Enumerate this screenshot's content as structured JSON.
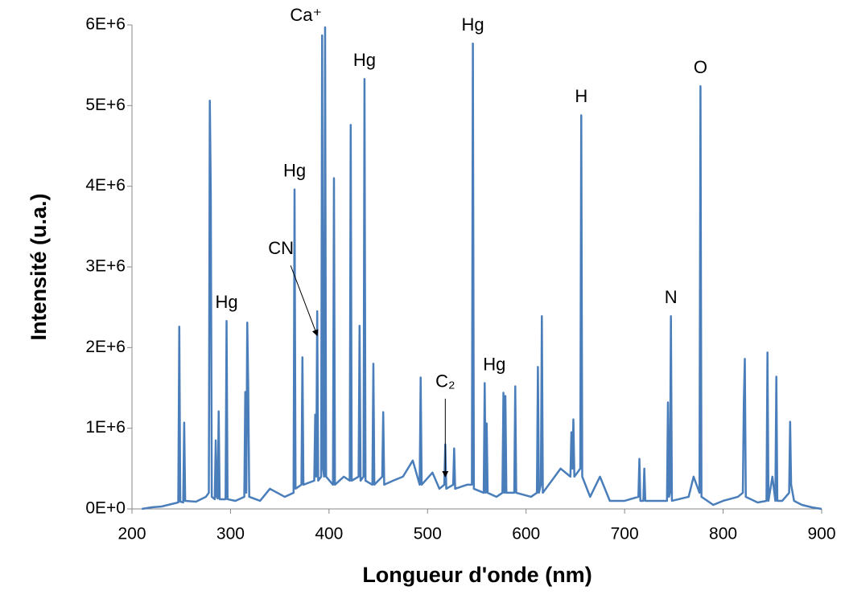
{
  "chart_data": {
    "type": "line",
    "x_label": "Longueur d'onde (nm)",
    "y_label": "Intensité (u.a.)",
    "xlim": [
      200,
      900
    ],
    "xticks": [
      200,
      300,
      400,
      500,
      600,
      700,
      800,
      900
    ],
    "ylim": [
      0,
      6000000
    ],
    "yticks": [
      {
        "value": 0,
        "label": "0E+0"
      },
      {
        "value": 1000000,
        "label": "1E+6"
      },
      {
        "value": 2000000,
        "label": "2E+6"
      },
      {
        "value": 3000000,
        "label": "3E+6"
      },
      {
        "value": 4000000,
        "label": "4E+6"
      },
      {
        "value": 5000000,
        "label": "5E+6"
      },
      {
        "value": 6000000,
        "label": "6E+6"
      }
    ],
    "grid": false,
    "series": [
      {
        "color": "#4a7ebb",
        "x": [
          210,
          220,
          230,
          240,
          247,
          248,
          249,
          252,
          253,
          254,
          265,
          275,
          278,
          279,
          280,
          281,
          284,
          285,
          286,
          287,
          288,
          289,
          295,
          296,
          297,
          305,
          314,
          315,
          316,
          317,
          318,
          319,
          330,
          340,
          355,
          364,
          365,
          366,
          372,
          373,
          374,
          385,
          386,
          387,
          388,
          389,
          392,
          393,
          394,
          395,
          396,
          397,
          404,
          405,
          406,
          415,
          421,
          422,
          423,
          430,
          431,
          432,
          435,
          436,
          437,
          444,
          445,
          446,
          454,
          455,
          456,
          465,
          475,
          485,
          492,
          493,
          494,
          505,
          512,
          517,
          518,
          519,
          526,
          527,
          528,
          540,
          545,
          546,
          547,
          557,
          558,
          559,
          560,
          561,
          570,
          576,
          577,
          578,
          579,
          580,
          588,
          589,
          590,
          605,
          611,
          612,
          613,
          615,
          616,
          617,
          635,
          645,
          646,
          647,
          648,
          649,
          655,
          656,
          657,
          665,
          675,
          685,
          700,
          714,
          715,
          716,
          719,
          720,
          721,
          735,
          743,
          744,
          745,
          746,
          747,
          748,
          765,
          770,
          776,
          777,
          778,
          790,
          800,
          815,
          820,
          821,
          822,
          823,
          835,
          844,
          845,
          846,
          850,
          853,
          854,
          855,
          860,
          867,
          868,
          869,
          872,
          880,
          890,
          900
        ],
        "values": [
          0,
          20000,
          30000,
          60000,
          80000,
          2260000,
          90000,
          80000,
          1070000,
          100000,
          90000,
          150000,
          200000,
          5060000,
          3900000,
          150000,
          120000,
          850000,
          150000,
          130000,
          1210000,
          120000,
          120000,
          2330000,
          120000,
          100000,
          150000,
          1450000,
          200000,
          2310000,
          1500000,
          150000,
          100000,
          250000,
          150000,
          200000,
          3960000,
          250000,
          300000,
          1880000,
          300000,
          350000,
          1170000,
          400000,
          2450000,
          350000,
          400000,
          5870000,
          500000,
          400000,
          5970000,
          400000,
          300000,
          4100000,
          300000,
          400000,
          350000,
          4760000,
          350000,
          400000,
          2270000,
          350000,
          400000,
          5330000,
          350000,
          300000,
          1800000,
          300000,
          400000,
          1200000,
          300000,
          350000,
          400000,
          600000,
          300000,
          1630000,
          300000,
          450000,
          250000,
          300000,
          800000,
          250000,
          300000,
          750000,
          250000,
          300000,
          300000,
          5770000,
          250000,
          200000,
          1560000,
          200000,
          1060000,
          200000,
          150000,
          200000,
          1440000,
          200000,
          1400000,
          200000,
          200000,
          1520000,
          200000,
          150000,
          200000,
          1760000,
          200000,
          300000,
          2390000,
          200000,
          500000,
          400000,
          950000,
          500000,
          1110000,
          400000,
          500000,
          4880000,
          400000,
          150000,
          400000,
          100000,
          100000,
          150000,
          620000,
          100000,
          100000,
          500000,
          100000,
          100000,
          100000,
          1320000,
          150000,
          200000,
          2390000,
          100000,
          150000,
          400000,
          200000,
          5240000,
          150000,
          50000,
          100000,
          150000,
          200000,
          1320000,
          1860000,
          150000,
          80000,
          100000,
          1940000,
          100000,
          400000,
          100000,
          1640000,
          100000,
          100000,
          200000,
          1080000,
          300000,
          100000,
          50000,
          20000,
          0
        ]
      }
    ],
    "annotations": [
      {
        "text": "Hg",
        "x": 296,
        "y": 2330000
      },
      {
        "text": "CN",
        "x": 388,
        "y": 2150000,
        "arrow": true
      },
      {
        "text": "Hg",
        "x": 365,
        "y": 3960000
      },
      {
        "text": "Ca⁺",
        "x": 393,
        "y": 5870000
      },
      {
        "text": "Hg",
        "x": 436,
        "y": 5330000
      },
      {
        "text": "C₂",
        "x": 518,
        "y": 400000,
        "arrow": true
      },
      {
        "text": "Hg",
        "x": 546,
        "y": 5770000
      },
      {
        "text": "Hg",
        "x": 558,
        "y": 1560000
      },
      {
        "text": "H",
        "x": 656,
        "y": 4880000
      },
      {
        "text": "N",
        "x": 747,
        "y": 2390000
      },
      {
        "text": "O",
        "x": 777,
        "y": 5240000
      }
    ]
  }
}
